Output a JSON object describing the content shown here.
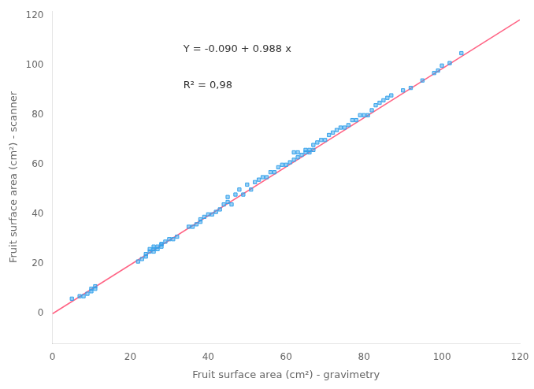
{
  "chart_data": {
    "type": "scatter",
    "xlabel": "Fruit surface area (cm²) - gravimetry",
    "ylabel": "Fruit surface area (cm²) - scanner",
    "annotations": [
      "Y = -0.090 + 0.988 x",
      "R² = 0,98"
    ],
    "xlim": [
      0,
      120
    ],
    "ylim": [
      -12,
      122
    ],
    "xticks": [
      0,
      20,
      40,
      60,
      80,
      100,
      120
    ],
    "yticks": [
      0,
      20,
      40,
      60,
      80,
      100,
      120
    ],
    "grid": false,
    "series": [
      {
        "type": "scatter",
        "marker": "square",
        "x": [
          5,
          7,
          8,
          9,
          10,
          10,
          11,
          11,
          22,
          23,
          24,
          24,
          25,
          25,
          26,
          26,
          26,
          27,
          27,
          28,
          28,
          28,
          29,
          30,
          31,
          32,
          35,
          36,
          37,
          38,
          38,
          39,
          40,
          41,
          42,
          43,
          44,
          45,
          45,
          46,
          47,
          48,
          49,
          50,
          51,
          52,
          53,
          54,
          55,
          56,
          57,
          58,
          59,
          60,
          61,
          62,
          62,
          63,
          63,
          64,
          65,
          65,
          66,
          66,
          67,
          67,
          68,
          69,
          70,
          71,
          72,
          73,
          74,
          75,
          76,
          77,
          78,
          79,
          80,
          81,
          82,
          83,
          84,
          85,
          86,
          87,
          90,
          92,
          95,
          98,
          99,
          100,
          102,
          105
        ],
        "values": [
          6,
          7,
          7,
          8,
          9,
          10,
          10,
          11,
          21,
          22,
          23,
          24,
          25,
          26,
          25,
          26,
          27,
          26,
          27,
          28,
          27,
          28,
          29,
          30,
          30,
          31,
          35,
          35,
          36,
          37,
          38,
          39,
          40,
          40,
          41,
          42,
          44,
          45,
          47,
          44,
          48,
          50,
          48,
          52,
          50,
          53,
          54,
          55,
          55,
          57,
          57,
          59,
          60,
          60,
          61,
          62,
          65,
          63,
          65,
          64,
          65,
          66,
          65,
          66,
          66,
          68,
          69,
          70,
          70,
          72,
          73,
          74,
          75,
          75,
          76,
          78,
          78,
          80,
          80,
          80,
          82,
          84,
          85,
          86,
          87,
          88,
          90,
          91,
          94,
          97,
          98,
          100,
          101,
          105
        ]
      },
      {
        "type": "line",
        "x": [
          0,
          120
        ],
        "values": [
          -0.09,
          118.47
        ]
      }
    ]
  }
}
